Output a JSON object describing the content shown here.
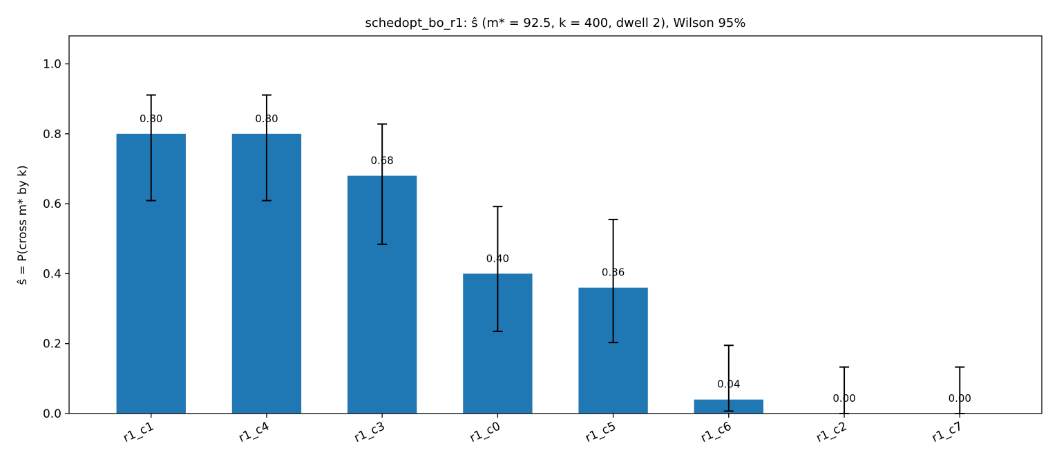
{
  "chart_data": {
    "type": "bar",
    "title": "schedopt_bo_r1: ŝ (m* = 92.5, k = 400, dwell 2), Wilson 95%",
    "ylabel": "ŝ = P(cross m* by k)",
    "xlabel": "",
    "categories": [
      "r1_c1",
      "r1_c4",
      "r1_c3",
      "r1_c0",
      "r1_c5",
      "r1_c6",
      "r1_c2",
      "r1_c7"
    ],
    "values": [
      0.8,
      0.8,
      0.68,
      0.4,
      0.36,
      0.04,
      0.0,
      0.0
    ],
    "value_labels": [
      "0.80",
      "0.80",
      "0.68",
      "0.40",
      "0.36",
      "0.04",
      "0.00",
      "0.00"
    ],
    "ci_low": [
      0.609,
      0.609,
      0.484,
      0.235,
      0.203,
      0.007,
      0.0,
      0.0
    ],
    "ci_high": [
      0.911,
      0.911,
      0.828,
      0.592,
      0.555,
      0.195,
      0.133,
      0.133
    ],
    "ylim": [
      0,
      1.08
    ],
    "yticks": [
      0.0,
      0.2,
      0.4,
      0.6,
      0.8,
      1.0
    ],
    "ytick_labels": [
      "0.0",
      "0.2",
      "0.4",
      "0.6",
      "0.8",
      "1.0"
    ],
    "bar_color": "#1f77b4",
    "errorbar_color": "#000000",
    "grid": false
  }
}
